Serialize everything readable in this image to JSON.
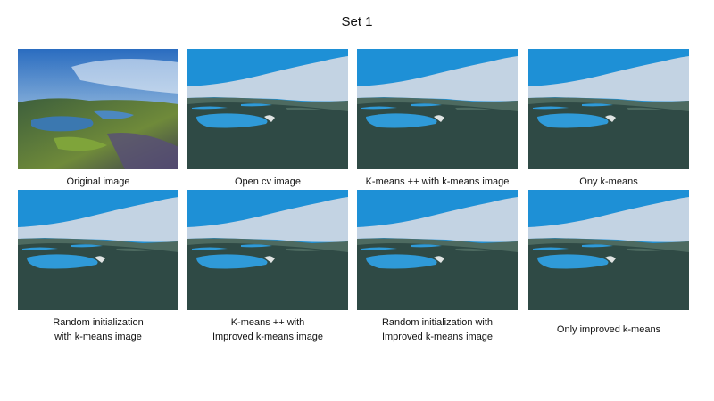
{
  "heading": "Set 1",
  "panels": [
    {
      "caption": [
        "Original image"
      ],
      "kind": "photo"
    },
    {
      "caption": [
        "Open cv image"
      ],
      "kind": "segmented"
    },
    {
      "caption": [
        "K-means ++ with k-means image"
      ],
      "kind": "segmented"
    },
    {
      "caption": [
        "Ony k-means"
      ],
      "kind": "segmented"
    },
    {
      "caption": [
        "Random initialization",
        "with k-means image"
      ],
      "kind": "segmented"
    },
    {
      "caption": [
        "K-means ++ with",
        "Improved k-means image"
      ],
      "kind": "segmented"
    },
    {
      "caption": [
        "Random initialization with",
        "Improved k-means image"
      ],
      "kind": "segmented"
    },
    {
      "caption": [
        "Only improved k-means"
      ],
      "kind": "segmented"
    }
  ],
  "colors": {
    "sky_blue": "#1e90d6",
    "cloud": "#c3d3e3",
    "land_dark": "#2f4a45",
    "land_mid": "#4d6a60",
    "lake": "#2f9ad8"
  }
}
